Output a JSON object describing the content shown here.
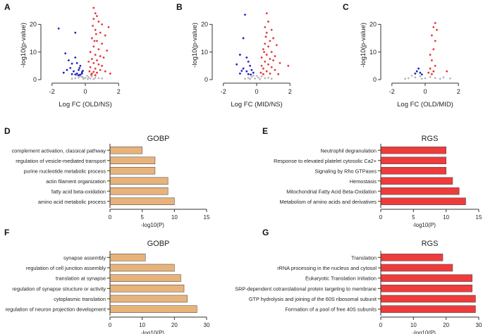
{
  "colors": {
    "up": "#e8363a",
    "down": "#2020c8",
    "ns": "#b8b8b8",
    "gobp_bar": "#e8b37a",
    "rgs_bar": "#ee3b3b",
    "axis": "#333333"
  },
  "chart_data": [
    {
      "panel": "A",
      "type": "scatter",
      "title": "",
      "xlabel": "Log FC (OLD/NS)",
      "ylabel": "-log10(p-value)",
      "xlim": [
        -2.5,
        2.5
      ],
      "ylim": [
        0,
        25
      ],
      "xticks": [
        "-2",
        "0",
        "2"
      ],
      "yticks": [
        "0",
        "10",
        "20"
      ],
      "series": [
        {
          "name": "down",
          "points": [
            [
              -1.6,
              18.5
            ],
            [
              -0.6,
              17
            ],
            [
              -1.2,
              9.5
            ],
            [
              -1.0,
              7
            ],
            [
              -0.8,
              5.8
            ],
            [
              -0.6,
              8
            ],
            [
              -0.5,
              6
            ],
            [
              -0.3,
              5
            ],
            [
              -0.4,
              3.5
            ],
            [
              -0.2,
              2.7
            ],
            [
              -0.9,
              4.2
            ],
            [
              -0.7,
              3
            ],
            [
              -0.5,
              2.2
            ],
            [
              -0.3,
              1.8
            ],
            [
              -1.1,
              3.5
            ],
            [
              -0.8,
              2
            ],
            [
              -0.4,
              1.6
            ],
            [
              -0.6,
              1.9
            ],
            [
              -0.2,
              2.2
            ],
            [
              -1.3,
              2.5
            ],
            [
              -0.35,
              4.2
            ],
            [
              -0.15,
              3.2
            ]
          ]
        },
        {
          "name": "up",
          "points": [
            [
              0.5,
              26
            ],
            [
              0.6,
              24
            ],
            [
              0.7,
              23
            ],
            [
              0.5,
              22
            ],
            [
              0.8,
              21
            ],
            [
              1.0,
              20
            ],
            [
              1.4,
              19
            ],
            [
              0.6,
              18
            ],
            [
              0.9,
              17
            ],
            [
              1.2,
              16
            ],
            [
              0.4,
              15
            ],
            [
              0.7,
              14
            ],
            [
              1.0,
              13
            ],
            [
              0.5,
              12
            ],
            [
              0.8,
              11
            ],
            [
              1.3,
              10.5
            ],
            [
              0.3,
              10
            ],
            [
              0.6,
              9
            ],
            [
              0.9,
              8.5
            ],
            [
              1.1,
              8
            ],
            [
              0.4,
              7.5
            ],
            [
              0.7,
              7
            ],
            [
              0.2,
              6.5
            ],
            [
              0.5,
              6
            ],
            [
              0.8,
              5.5
            ],
            [
              1.0,
              5
            ],
            [
              0.3,
              4.5
            ],
            [
              0.6,
              4
            ],
            [
              0.9,
              3.5
            ],
            [
              0.25,
              3
            ],
            [
              0.5,
              2.8
            ],
            [
              0.7,
              2.5
            ],
            [
              0.4,
              2.2
            ],
            [
              1.5,
              2.2
            ],
            [
              0.35,
              1.8
            ],
            [
              0.6,
              1.6
            ],
            [
              1.2,
              3
            ],
            [
              0.55,
              14
            ],
            [
              0.65,
              16.5
            ],
            [
              0.45,
              19.5
            ]
          ]
        },
        {
          "name": "ns",
          "points": [
            [
              -0.6,
              0.5
            ],
            [
              -0.4,
              0.8
            ],
            [
              -0.2,
              1.0
            ],
            [
              0,
              0.6
            ],
            [
              0.2,
              0.9
            ],
            [
              0.4,
              1.2
            ],
            [
              -0.1,
              0.3
            ],
            [
              0.1,
              1.4
            ],
            [
              0.3,
              0.4
            ],
            [
              -0.3,
              1.3
            ],
            [
              0.6,
              0.7
            ],
            [
              -0.8,
              0.3
            ],
            [
              0.8,
              0.5
            ],
            [
              -0.5,
              1.5
            ],
            [
              0.5,
              0.2
            ],
            [
              0.15,
              0.2
            ],
            [
              -0.15,
              0.8
            ],
            [
              1.0,
              0.4
            ]
          ]
        }
      ]
    },
    {
      "panel": "B",
      "type": "scatter",
      "title": "",
      "xlabel": "Log FC (MID/NS)",
      "ylabel": "-log10(p-value)",
      "xlim": [
        -2.5,
        2.5
      ],
      "ylim": [
        0,
        25
      ],
      "xticks": [
        "-2",
        "0",
        "2"
      ],
      "yticks": [
        "0",
        "10",
        "20"
      ],
      "series": [
        {
          "name": "down",
          "points": [
            [
              -0.7,
              23.5
            ],
            [
              -0.8,
              15
            ],
            [
              -1.0,
              9
            ],
            [
              -0.6,
              8
            ],
            [
              -0.5,
              6.5
            ],
            [
              -1.2,
              5.5
            ],
            [
              -0.4,
              5
            ],
            [
              -0.8,
              4
            ],
            [
              -0.3,
              3.5
            ],
            [
              -0.6,
              3
            ],
            [
              -0.2,
              2.5
            ],
            [
              -1.0,
              2.2
            ],
            [
              -0.5,
              2
            ],
            [
              -0.35,
              1.8
            ],
            [
              -0.9,
              3.2
            ]
          ]
        },
        {
          "name": "up",
          "points": [
            [
              0.6,
              24
            ],
            [
              0.7,
              21
            ],
            [
              0.5,
              19
            ],
            [
              0.9,
              18
            ],
            [
              0.6,
              17
            ],
            [
              1.0,
              15
            ],
            [
              0.8,
              14
            ],
            [
              0.5,
              13
            ],
            [
              1.2,
              12.5
            ],
            [
              0.7,
              12
            ],
            [
              0.4,
              11
            ],
            [
              0.9,
              10
            ],
            [
              0.6,
              9
            ],
            [
              1.1,
              8.5
            ],
            [
              0.3,
              8
            ],
            [
              0.8,
              7.5
            ],
            [
              1.0,
              7
            ],
            [
              0.5,
              6.5
            ],
            [
              1.4,
              6
            ],
            [
              0.7,
              5.5
            ],
            [
              0.3,
              5
            ],
            [
              0.9,
              4.5
            ],
            [
              0.4,
              4
            ],
            [
              1.1,
              3.5
            ],
            [
              0.6,
              3
            ],
            [
              0.25,
              2.5
            ],
            [
              0.8,
              2.2
            ],
            [
              0.4,
              2
            ],
            [
              1.9,
              5
            ],
            [
              1.3,
              2
            ],
            [
              0.55,
              15.5
            ],
            [
              0.45,
              10
            ]
          ]
        },
        {
          "name": "ns",
          "points": [
            [
              -0.5,
              0.6
            ],
            [
              -0.3,
              1.0
            ],
            [
              -0.1,
              0.4
            ],
            [
              0.1,
              0.8
            ],
            [
              0.3,
              1.2
            ],
            [
              0.5,
              0.5
            ],
            [
              -0.7,
              0.3
            ],
            [
              0.7,
              0.7
            ],
            [
              0,
              1.4
            ],
            [
              -0.2,
              1.5
            ],
            [
              0.2,
              0.2
            ],
            [
              -0.4,
              0.2
            ],
            [
              0.9,
              0.3
            ]
          ]
        }
      ]
    },
    {
      "panel": "C",
      "type": "scatter",
      "title": "",
      "xlabel": "Log FC (OLD/MID)",
      "ylabel": "-log10(p-value)",
      "xlim": [
        -2.5,
        2.5
      ],
      "ylim": [
        0,
        25
      ],
      "xticks": [
        "-2",
        "0",
        "2"
      ],
      "yticks": [
        "0",
        "10",
        "20"
      ],
      "series": [
        {
          "name": "down",
          "points": [
            [
              -0.4,
              4
            ],
            [
              -0.5,
              3
            ],
            [
              -0.3,
              2.5
            ],
            [
              -0.6,
              2.2
            ],
            [
              -0.2,
              1.9
            ]
          ]
        },
        {
          "name": "up",
          "points": [
            [
              0.6,
              20.5
            ],
            [
              0.5,
              19
            ],
            [
              0.7,
              18
            ],
            [
              0.4,
              16
            ],
            [
              0.6,
              14
            ],
            [
              0.5,
              11
            ],
            [
              0.3,
              9
            ],
            [
              0.4,
              7
            ],
            [
              0.6,
              5
            ],
            [
              0.3,
              4
            ],
            [
              0.5,
              3
            ],
            [
              0.2,
              2.5
            ],
            [
              1.3,
              3
            ],
            [
              0.4,
              2
            ]
          ]
        },
        {
          "name": "ns",
          "points": [
            [
              -1.0,
              0.5
            ],
            [
              -0.6,
              0.8
            ],
            [
              -0.3,
              1.2
            ],
            [
              0,
              0.5
            ],
            [
              0.3,
              1.0
            ],
            [
              0.6,
              0.6
            ],
            [
              -0.8,
              1.4
            ],
            [
              0.9,
              0.3
            ],
            [
              -1.2,
              0.3
            ],
            [
              1.1,
              0.8
            ],
            [
              1.5,
              0.4
            ],
            [
              -0.2,
              0.3
            ]
          ]
        }
      ]
    },
    {
      "panel": "D",
      "type": "bar",
      "orientation": "horizontal",
      "title": "GOBP",
      "categories": [
        "complement activation, classical pathway",
        "regulation of vesicle-mediated transport",
        "purine nucleotide metabolic process",
        "actin filament organization",
        "fatty acid beta-oxidation",
        "amino acid metabolic process"
      ],
      "values": [
        5,
        7,
        7,
        9,
        9,
        10
      ],
      "xlabel": "-log10(P)",
      "xlim": [
        0,
        15
      ],
      "xticks": [
        "0",
        "5",
        "10",
        "15"
      ]
    },
    {
      "panel": "E",
      "type": "bar",
      "orientation": "horizontal",
      "title": "RGS",
      "categories": [
        "Neutrophil degranulation",
        "Response to elevated platelet cytosolic Ca2+",
        "Signaling by Rho GTPases",
        "Hemostasis",
        "Mitochondrial Fatty Acid Beta-Oxidation",
        "Metabolism of amino acids and derivatives"
      ],
      "values": [
        10,
        10,
        10,
        11,
        12,
        13
      ],
      "xlabel": "-log10(P)",
      "xlim": [
        0,
        15
      ],
      "xticks": [
        "0",
        "5",
        "10",
        "15"
      ]
    },
    {
      "panel": "F",
      "type": "bar",
      "orientation": "horizontal",
      "title": "GOBP",
      "categories": [
        "synapse assembly",
        "regulation of cell junction assembly",
        "translation at synapse",
        "regulation of synapse structure or activity",
        "cytoplasmic translation",
        "regulation of neuron projection development"
      ],
      "values": [
        11,
        20,
        22,
        23,
        24,
        27
      ],
      "xlabel": "-log10(P)",
      "xlim": [
        0,
        30
      ],
      "xticks": [
        "0",
        "10",
        "20",
        "30"
      ]
    },
    {
      "panel": "G",
      "type": "bar",
      "orientation": "horizontal",
      "title": "RGS",
      "categories": [
        "Translation",
        "rRNA processing in the nucleus and cytosol",
        "Eukaryotic Translation Initiation",
        "SRP-dependent cotranslational protein targeting to membrane",
        "GTP hydrolysis and joining of the 60S ribosomal subunit",
        "Formation of a pool of free 40S subunits"
      ],
      "values": [
        19,
        22,
        28,
        28,
        29,
        29
      ],
      "xlabel": "-log10(P)",
      "xlim": [
        0,
        30
      ],
      "xticks": [
        "0",
        "10",
        "20",
        "30"
      ]
    }
  ]
}
